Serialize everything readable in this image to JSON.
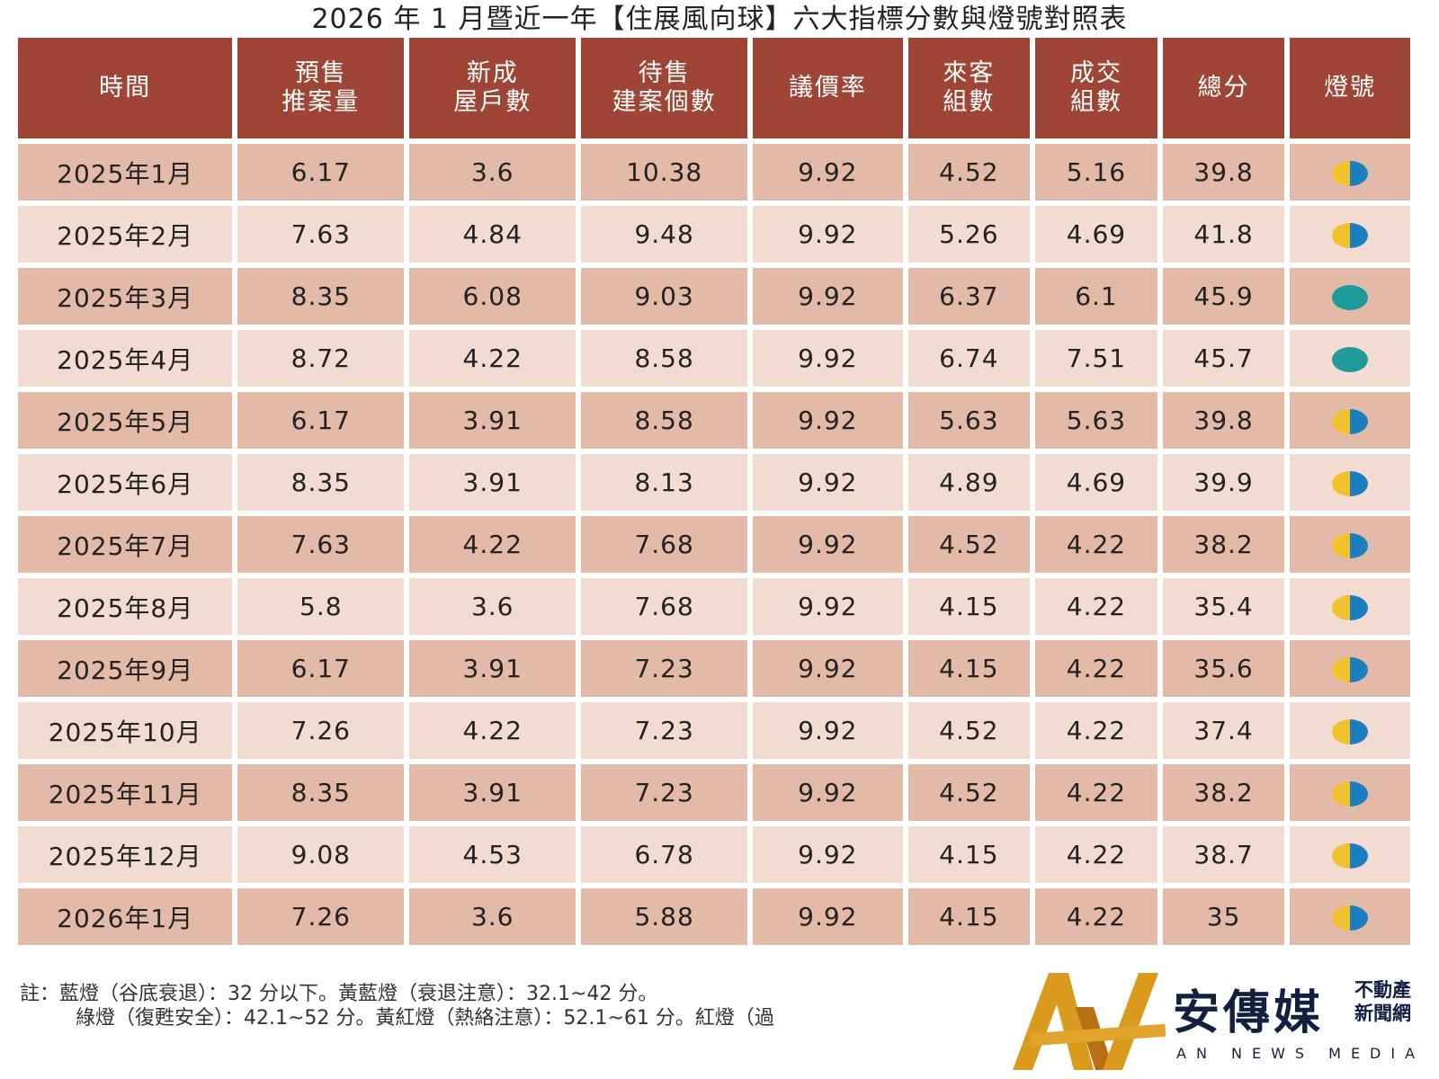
{
  "title": "2026 年 1 月暨近一年【住展風向球】六大指標分數與燈號對照表",
  "headers": [
    [
      "時間"
    ],
    [
      "預售",
      "推案量"
    ],
    [
      "新成",
      "屋戶數"
    ],
    [
      "待售",
      "建案個數"
    ],
    [
      "議價率"
    ],
    [
      "來客",
      "組數"
    ],
    [
      "成交",
      "組數"
    ],
    [
      "總分"
    ],
    [
      "燈號"
    ]
  ],
  "rows": [
    {
      "time": "2025年1月",
      "presale": "6.17",
      "new_units": "3.6",
      "pending": "10.38",
      "bargain": "9.92",
      "visitors": "4.52",
      "deals": "5.16",
      "total": "39.8",
      "lamp": "yellow-blue"
    },
    {
      "time": "2025年2月",
      "presale": "7.63",
      "new_units": "4.84",
      "pending": "9.48",
      "bargain": "9.92",
      "visitors": "5.26",
      "deals": "4.69",
      "total": "41.8",
      "lamp": "yellow-blue"
    },
    {
      "time": "2025年3月",
      "presale": "8.35",
      "new_units": "6.08",
      "pending": "9.03",
      "bargain": "9.92",
      "visitors": "6.37",
      "deals": "6.1",
      "total": "45.9",
      "lamp": "green"
    },
    {
      "time": "2025年4月",
      "presale": "8.72",
      "new_units": "4.22",
      "pending": "8.58",
      "bargain": "9.92",
      "visitors": "6.74",
      "deals": "7.51",
      "total": "45.7",
      "lamp": "green"
    },
    {
      "time": "2025年5月",
      "presale": "6.17",
      "new_units": "3.91",
      "pending": "8.58",
      "bargain": "9.92",
      "visitors": "5.63",
      "deals": "5.63",
      "total": "39.8",
      "lamp": "yellow-blue"
    },
    {
      "time": "2025年6月",
      "presale": "8.35",
      "new_units": "3.91",
      "pending": "8.13",
      "bargain": "9.92",
      "visitors": "4.89",
      "deals": "4.69",
      "total": "39.9",
      "lamp": "yellow-blue"
    },
    {
      "time": "2025年7月",
      "presale": "7.63",
      "new_units": "4.22",
      "pending": "7.68",
      "bargain": "9.92",
      "visitors": "4.52",
      "deals": "4.22",
      "total": "38.2",
      "lamp": "yellow-blue"
    },
    {
      "time": "2025年8月",
      "presale": "5.8",
      "new_units": "3.6",
      "pending": "7.68",
      "bargain": "9.92",
      "visitors": "4.15",
      "deals": "4.22",
      "total": "35.4",
      "lamp": "yellow-blue"
    },
    {
      "time": "2025年9月",
      "presale": "6.17",
      "new_units": "3.91",
      "pending": "7.23",
      "bargain": "9.92",
      "visitors": "4.15",
      "deals": "4.22",
      "total": "35.6",
      "lamp": "yellow-blue"
    },
    {
      "time": "2025年10月",
      "presale": "7.26",
      "new_units": "4.22",
      "pending": "7.23",
      "bargain": "9.92",
      "visitors": "4.52",
      "deals": "4.22",
      "total": "37.4",
      "lamp": "yellow-blue"
    },
    {
      "time": "2025年11月",
      "presale": "8.35",
      "new_units": "3.91",
      "pending": "7.23",
      "bargain": "9.92",
      "visitors": "4.52",
      "deals": "4.22",
      "total": "38.2",
      "lamp": "yellow-blue"
    },
    {
      "time": "2025年12月",
      "presale": "9.08",
      "new_units": "4.53",
      "pending": "6.78",
      "bargain": "9.92",
      "visitors": "4.15",
      "deals": "4.22",
      "total": "38.7",
      "lamp": "yellow-blue"
    },
    {
      "time": "2026年1月",
      "presale": "7.26",
      "new_units": "3.6",
      "pending": "5.88",
      "bargain": "9.92",
      "visitors": "4.15",
      "deals": "4.22",
      "total": "35",
      "lamp": "yellow-blue"
    }
  ],
  "notes": {
    "line1": "註：藍燈（谷底衰退）：32 分以下。黃藍燈（衰退注意）：32.1~42 分。",
    "line2": "綠燈（復甦安全）：42.1~52 分。黃紅燈（熱絡注意）：52.1~61 分。紅燈（過"
  },
  "logo": {
    "brand": "安傳媒",
    "sub1": "不動產",
    "sub2": "新聞網",
    "english": "AN NEWS MEDIA"
  },
  "colors": {
    "header_bg": "#9e4535",
    "row_dark": "#e3baa7",
    "row_light": "#f2dcd2",
    "lamp_yellow": "#f2c12e",
    "lamp_blue": "#1b7fbf",
    "lamp_green": "#1e9a9a",
    "logo_gold": "#d99a1e",
    "logo_navy": "#11203f"
  }
}
